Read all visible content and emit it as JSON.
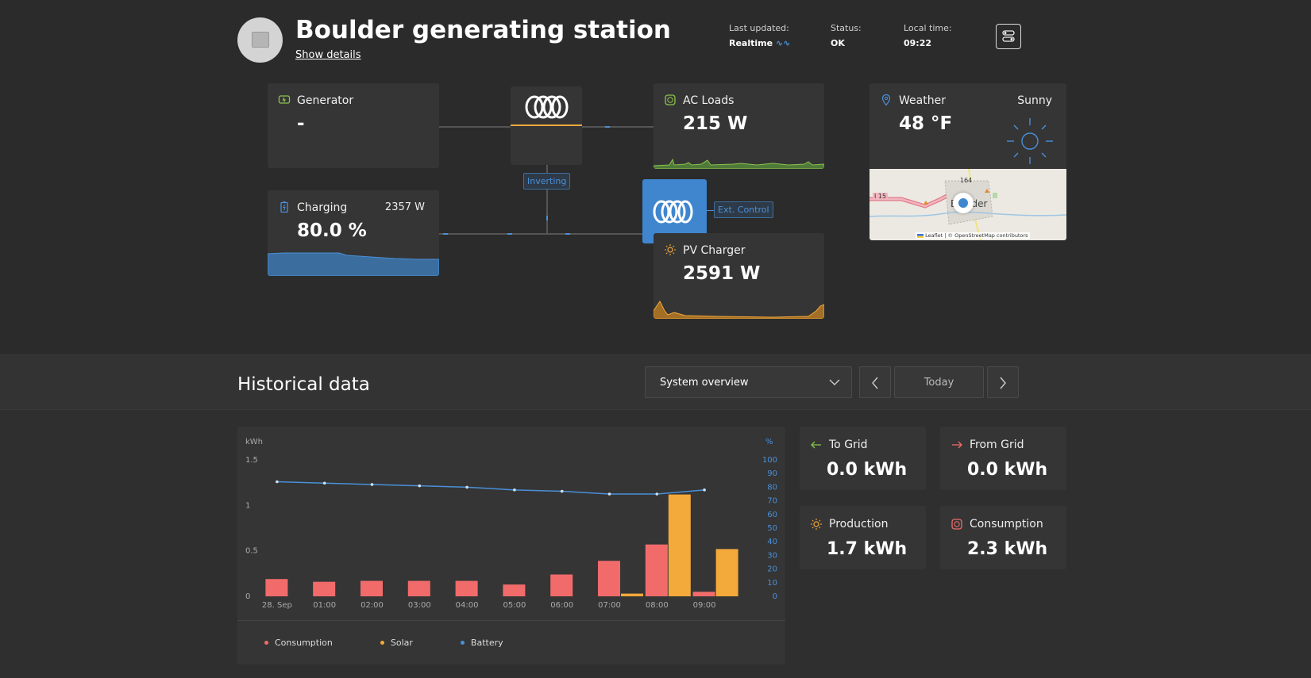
{
  "header": {
    "title": "Boulder generating station",
    "show_details": "Show details",
    "last_updated_label": "Last updated:",
    "last_updated_value": "Realtime",
    "status_label": "Status:",
    "status_value": "OK",
    "local_time_label": "Local time:",
    "local_time_value": "09:22"
  },
  "diagram": {
    "generator": {
      "title": "Generator",
      "value": "-"
    },
    "battery": {
      "title": "Charging",
      "power": "2357 W",
      "value": "80.0 %"
    },
    "ac_loads": {
      "title": "AC Loads",
      "value": "215 W"
    },
    "pv_charger": {
      "title": "PV Charger",
      "value": "2591 W"
    },
    "inverter_tag": "Inverting",
    "ext_control_tag": "Ext. Control"
  },
  "weather": {
    "title": "Weather",
    "condition": "Sunny",
    "temperature": "48 °F",
    "map_label_road": "I 15",
    "map_label_route": "164",
    "map_label_town": "Boulder",
    "map_attribution": "Leaflet | © OpenStreetMap contributors"
  },
  "historical": {
    "title": "Historical data",
    "view_select": "System overview",
    "date_button": "Today"
  },
  "stats": {
    "to_grid": {
      "title": "To Grid",
      "value": "0.0 kWh"
    },
    "from_grid": {
      "title": "From Grid",
      "value": "0.0 kWh"
    },
    "production": {
      "title": "Production",
      "value": "1.7 kWh"
    },
    "consumption": {
      "title": "Consumption",
      "value": "2.3 kWh"
    }
  },
  "colors": {
    "consumption": "#f26b6b",
    "solar": "#f4a93b",
    "battery": "#4a90d9",
    "generator_icon": "#8bc34a"
  },
  "chart_data": {
    "type": "bar",
    "ylabel_left": "kWh",
    "ylabel_right": "%",
    "categories": [
      "28. Sep",
      "01:00",
      "02:00",
      "03:00",
      "04:00",
      "05:00",
      "06:00",
      "07:00",
      "08:00",
      "09:00"
    ],
    "left_ticks": [
      "0",
      "0.5",
      "1",
      "1.5"
    ],
    "right_ticks": [
      "0",
      "10",
      "20",
      "30",
      "40",
      "50",
      "60",
      "70",
      "80",
      "90",
      "100"
    ],
    "ylim_left": [
      0,
      1.5
    ],
    "ylim_right": [
      0,
      100
    ],
    "series": [
      {
        "name": "Consumption",
        "type": "bar",
        "values": [
          0.19,
          0.16,
          0.17,
          0.17,
          0.17,
          0.13,
          0.24,
          0.39,
          0.57,
          0.05
        ]
      },
      {
        "name": "Solar",
        "type": "bar",
        "values": [
          0,
          0,
          0,
          0,
          0,
          0,
          0,
          0.03,
          1.12,
          0.52
        ]
      },
      {
        "name": "Battery",
        "type": "line",
        "axis": "right",
        "values": [
          84,
          83,
          82,
          81,
          80,
          78,
          77,
          75,
          75,
          78
        ]
      }
    ],
    "legend": [
      "Consumption",
      "Solar",
      "Battery"
    ]
  }
}
